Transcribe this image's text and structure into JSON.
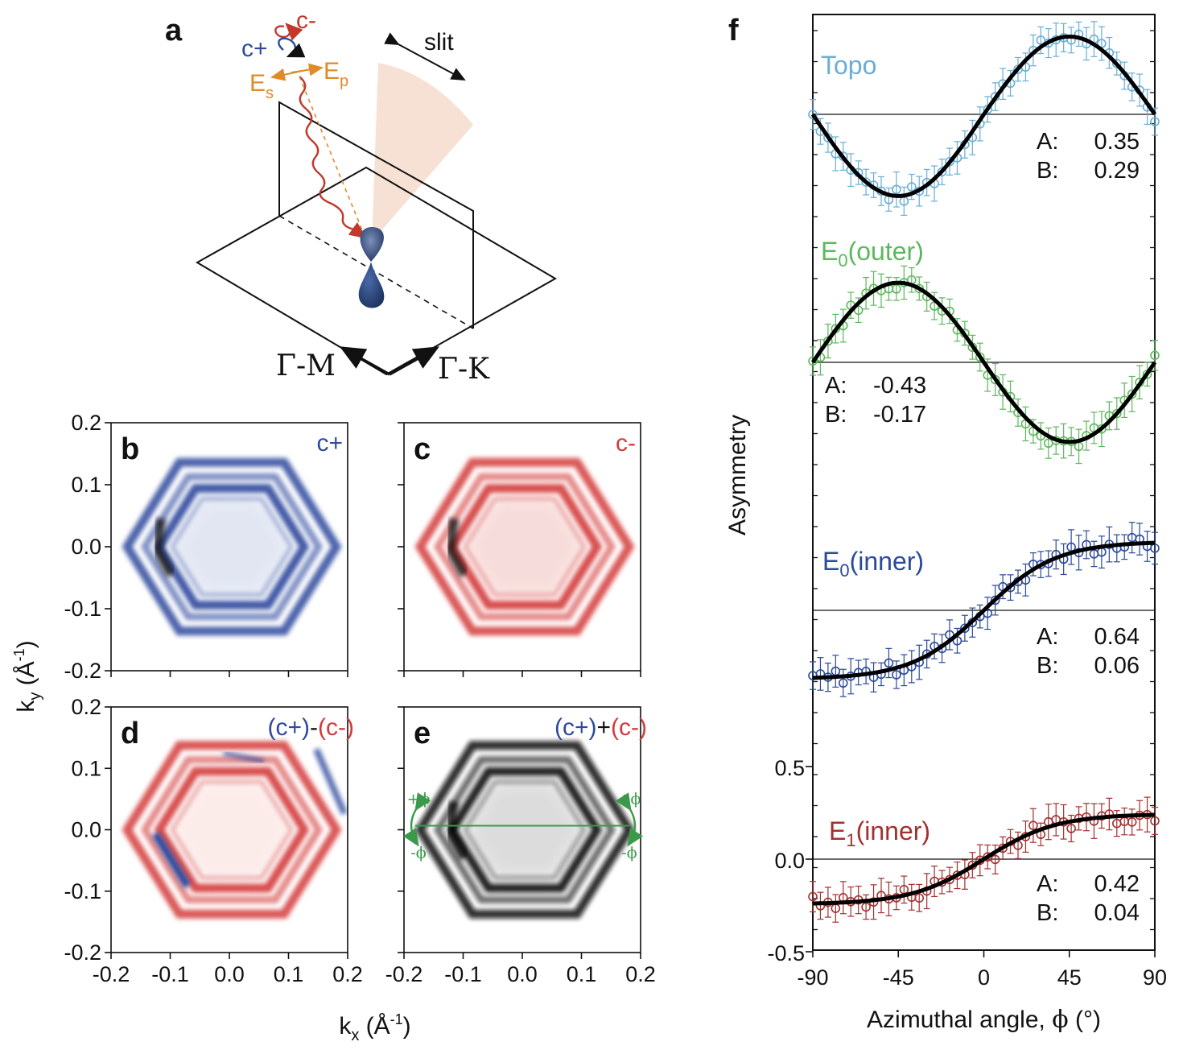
{
  "figure": {
    "panel_labels": [
      "a",
      "b",
      "c",
      "d",
      "e",
      "f"
    ],
    "schematic": {
      "pol_minus": "c-",
      "pol_plus": "c+",
      "es_main": "E",
      "es_sub": "s",
      "ep_main": "E",
      "ep_sub": "p",
      "slit": "slit",
      "gamma_m": "Γ-M",
      "gamma_k": "Γ-K"
    },
    "maps": {
      "panels": [
        {
          "label": "b",
          "title": "c+",
          "kind": "plus"
        },
        {
          "label": "c",
          "title": "c-",
          "kind": "minus"
        },
        {
          "label": "d",
          "title_parts": [
            "(c+)",
            "-",
            "(c-)"
          ],
          "kind": "diff"
        },
        {
          "label": "e",
          "title_parts": [
            "(c+)",
            "+",
            "(c-)"
          ],
          "kind": "sum"
        }
      ],
      "ticks": [
        "-0.2",
        "-0.1",
        "0.0",
        "0.1",
        "0.2"
      ],
      "y_label_main": "k",
      "y_label_sub": "y",
      "y_label_unit": " (Å",
      "y_label_exp": "-1",
      "y_label_close": ")",
      "x_label_main": "k",
      "x_label_sub": "x",
      "x_label_unit": " (Å",
      "x_label_exp": "-1",
      "x_label_close": ")",
      "phi_plus": "+ϕ",
      "phi_minus": "-ϕ"
    },
    "colors": {
      "plus_blue": "#2e4a9e",
      "minus_red": "#d43a3a",
      "topo": "#6aaed6",
      "outer": "#5cb85c",
      "inner0": "#2b4a9a",
      "inner1": "#a33030",
      "phi_green": "#3a9a4a",
      "schematic_red": "#c0392b",
      "schematic_orange": "#e08a2a"
    }
  },
  "chart_data": {
    "type": "line",
    "title": "f",
    "xlabel": "Azimuthal angle, ϕ (°)",
    "xlabel_text": "Azimuthal angle, ",
    "xlabel_symbol": "ϕ",
    "xlabel_unit": " (°)",
    "ylabel": "Asymmetry",
    "xlim": [
      -90,
      90
    ],
    "x_ticks": [
      "-90",
      "-45",
      "0",
      "45",
      "90"
    ],
    "y_ticks_bottom": [
      "0.5",
      "0.0",
      "-0.5"
    ],
    "series": [
      {
        "name": "Topo",
        "name_main": "Topo",
        "name_sub": "",
        "name_tail": "",
        "A": "0.35",
        "B": "0.29",
        "color_key": "topo",
        "A_val": 0.35,
        "B_val": 0.29,
        "phase": "cos2"
      },
      {
        "name": "E0(outer)",
        "name_main": "E",
        "name_sub": "0",
        "name_tail": "(outer)",
        "A": "-0.43",
        "B": "-0.17",
        "color_key": "outer",
        "A_val": -0.43,
        "B_val": -0.17,
        "phase": "cos2"
      },
      {
        "name": "E0(inner)",
        "name_main": "E",
        "name_sub": "0",
        "name_tail": "(inner)",
        "A": "0.64",
        "B": "0.06",
        "color_key": "inner0",
        "A_val": 0.64,
        "B_val": 0.06,
        "phase": "cos2"
      },
      {
        "name": "E1(inner)",
        "name_main": "E",
        "name_sub": "1",
        "name_tail": "(inner)",
        "A": "0.42",
        "B": "0.04",
        "color_key": "inner1",
        "A_val": 0.42,
        "B_val": 0.04,
        "phase": "cos2"
      }
    ],
    "param_labels": {
      "A": "A:",
      "B": "B:"
    }
  }
}
